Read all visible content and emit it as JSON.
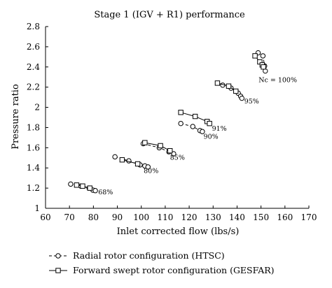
{
  "chart_data": {
    "type": "line",
    "title": "Stage 1 (IGV + R1) performance",
    "xlabel": "Inlet corrected flow (lbs/s)",
    "ylabel": "Pressure ratio",
    "xlim": [
      60,
      170
    ],
    "ylim": [
      1,
      2.8
    ],
    "xticks": [
      60,
      70,
      80,
      90,
      100,
      110,
      120,
      130,
      140,
      150,
      160,
      170
    ],
    "yticks": [
      1,
      1.2,
      1.4,
      1.6,
      1.8,
      2,
      2.2,
      2.4,
      2.6,
      2.8
    ],
    "ytick_labels": [
      "1",
      "1.2",
      "1.4",
      "1.6",
      "1.8",
      "2",
      "2.2",
      "2.4",
      "2.6",
      "2.8"
    ],
    "grid": false,
    "legend_position": "bottom",
    "series": [
      {
        "name": "Radial rotor configuration (HTSC)",
        "marker": "circle",
        "line_style": "dashed",
        "lines": [
          [
            [
              70.5,
              1.24
            ],
            [
              74.8,
              1.22
            ],
            [
              78.2,
              1.2
            ],
            [
              79.8,
              1.18
            ],
            [
              80.8,
              1.175
            ]
          ],
          [
            [
              89,
              1.51
            ],
            [
              94.8,
              1.47
            ],
            [
              99.5,
              1.43
            ],
            [
              101.5,
              1.42
            ],
            [
              102.8,
              1.41
            ]
          ],
          [
            [
              100.8,
              1.64
            ],
            [
              107.5,
              1.6
            ],
            [
              111.5,
              1.56
            ],
            [
              113.5,
              1.54
            ]
          ],
          [
            [
              116.5,
              1.84
            ],
            [
              121.5,
              1.81
            ],
            [
              124.5,
              1.77
            ],
            [
              125.5,
              1.76
            ]
          ],
          [
            [
              134,
              2.22
            ],
            [
              137.5,
              2.19
            ],
            [
              140.5,
              2.14
            ],
            [
              141.5,
              2.11
            ],
            [
              142,
              2.09
            ]
          ],
          [
            [
              148.8,
              2.54
            ],
            [
              150.8,
              2.51
            ],
            [
              151.5,
              2.41
            ],
            [
              151.8,
              2.36
            ]
          ]
        ]
      },
      {
        "name": "Forward swept rotor configuration (GESFAR)",
        "marker": "square",
        "line_style": "solid",
        "lines": [
          [
            [
              73,
              1.23
            ],
            [
              75.5,
              1.22
            ],
            [
              78.5,
              1.2
            ]
          ],
          [
            [
              92,
              1.48
            ],
            [
              98.5,
              1.44
            ]
          ],
          [
            [
              101.5,
              1.65
            ],
            [
              108,
              1.62
            ],
            [
              112,
              1.57
            ]
          ],
          [
            [
              116.5,
              1.95
            ],
            [
              122.5,
              1.91
            ],
            [
              127.5,
              1.86
            ],
            [
              128.5,
              1.84
            ]
          ],
          [
            [
              131.8,
              2.24
            ],
            [
              136.5,
              2.21
            ],
            [
              139.5,
              2.16
            ]
          ],
          [
            [
              147.5,
              2.51
            ],
            [
              149.5,
              2.45
            ],
            [
              150.5,
              2.42
            ],
            [
              151,
              2.4
            ]
          ]
        ]
      }
    ],
    "annotations": [
      {
        "text": "68%",
        "x": 82,
        "y": 1.14
      },
      {
        "text": "80%",
        "x": 101,
        "y": 1.35
      },
      {
        "text": "85%",
        "x": 112,
        "y": 1.48
      },
      {
        "text": "90%",
        "x": 126,
        "y": 1.69
      },
      {
        "text": "91%",
        "x": 129.5,
        "y": 1.77
      },
      {
        "text": "95%",
        "x": 143,
        "y": 2.04
      },
      {
        "text": "Nc = 100%",
        "x": 149,
        "y": 2.25
      }
    ]
  }
}
